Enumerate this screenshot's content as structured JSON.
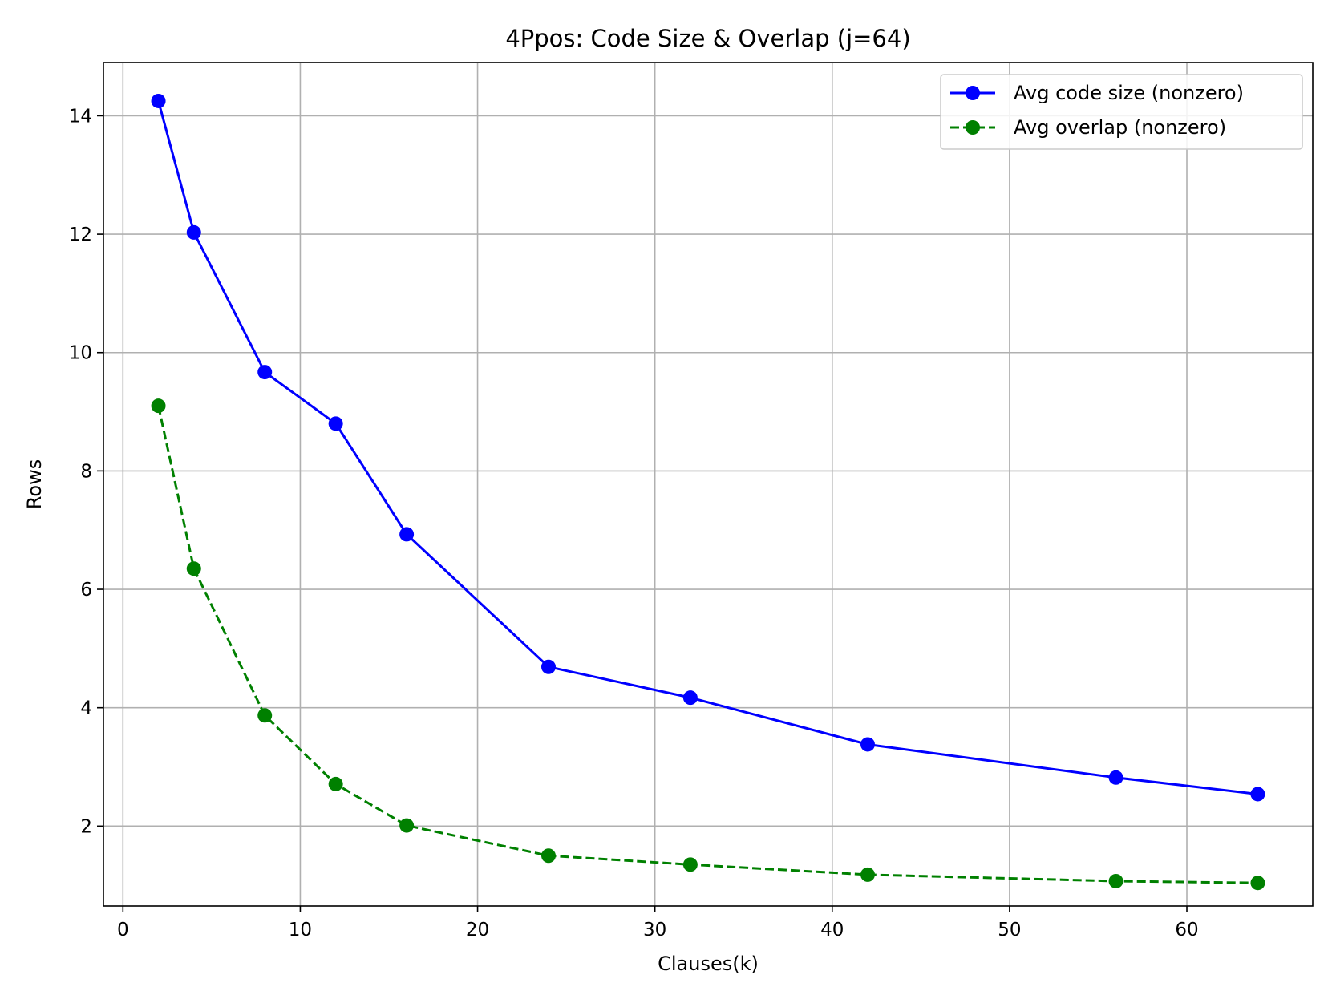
{
  "chart_data": {
    "type": "line",
    "title": "4Ppos: Code Size & Overlap (j=64)",
    "xlabel": "Clauses(k)",
    "ylabel": "Rows",
    "xlim": [
      -1.1,
      67.1
    ],
    "ylim": [
      0.65,
      14.9
    ],
    "xticks": [
      0,
      10,
      20,
      30,
      40,
      50,
      60
    ],
    "yticks": [
      2,
      4,
      6,
      8,
      10,
      12,
      14
    ],
    "grid": true,
    "legend_position": "top-right",
    "x": [
      2,
      4,
      8,
      12,
      16,
      24,
      32,
      42,
      56,
      64
    ],
    "series": [
      {
        "name": "Avg code size (nonzero)",
        "color": "#0000ff",
        "line_style": "solid",
        "marker": "circle",
        "values": [
          14.25,
          12.03,
          9.67,
          8.8,
          6.93,
          4.69,
          4.17,
          3.38,
          2.82,
          2.54
        ]
      },
      {
        "name": "Avg overlap (nonzero)",
        "color": "#008000",
        "line_style": "dashed",
        "marker": "circle",
        "values": [
          9.1,
          6.35,
          3.87,
          2.71,
          2.01,
          1.5,
          1.35,
          1.18,
          1.07,
          1.04
        ]
      }
    ]
  }
}
